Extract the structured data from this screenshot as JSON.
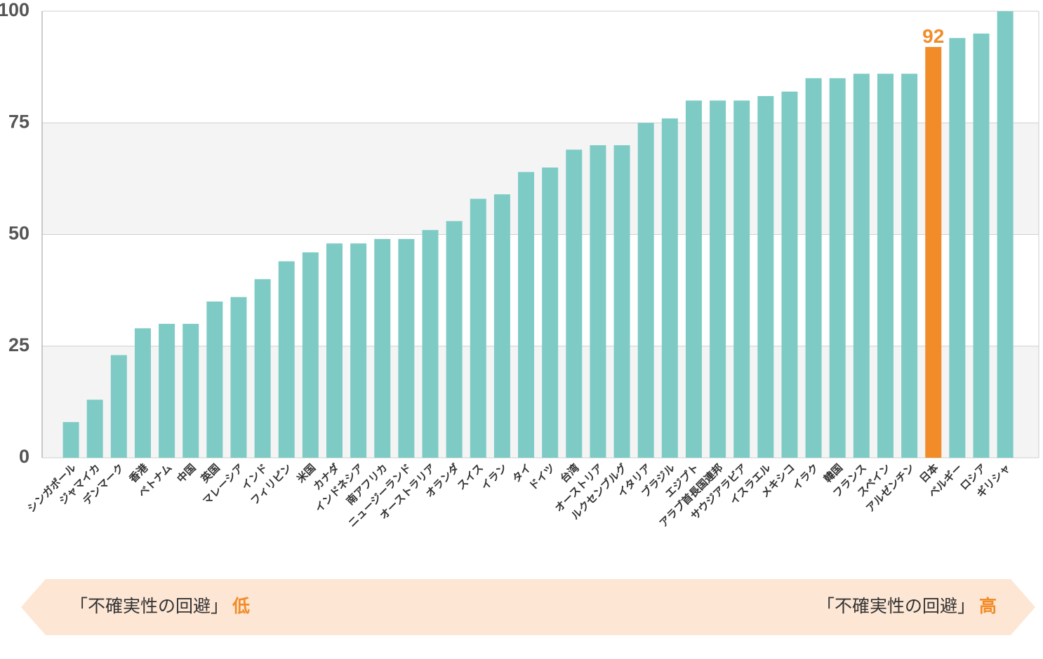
{
  "chart_data": {
    "type": "bar",
    "categories": [
      "シンガポール",
      "ジャマイカ",
      "デンマーク",
      "香港",
      "ベトナム",
      "中国",
      "英国",
      "マレーシア",
      "インド",
      "フィリピン",
      "米国",
      "カナダ",
      "インドネシア",
      "南アフリカ",
      "ニュージーランド",
      "オーストラリア",
      "オランダ",
      "スイス",
      "イラン",
      "タイ",
      "ドイツ",
      "台湾",
      "オーストリア",
      "ルクセンブルグ",
      "イタリア",
      "ブラジル",
      "エジプト",
      "アラブ首長国連邦",
      "サウジアラビア",
      "イスラエル",
      "メキシコ",
      "イラク",
      "韓国",
      "フランス",
      "スペイン",
      "アルゼンチン",
      "日本",
      "ベルギー",
      "ロシア",
      "ギリシャ"
    ],
    "values": [
      8,
      13,
      23,
      29,
      30,
      30,
      35,
      36,
      40,
      44,
      46,
      48,
      48,
      49,
      49,
      51,
      53,
      58,
      59,
      64,
      65,
      69,
      70,
      70,
      75,
      76,
      80,
      80,
      80,
      81,
      82,
      85,
      85,
      86,
      86,
      86,
      92,
      94,
      95,
      100
    ],
    "color": "#7ecbc6",
    "highlight": "日本",
    "highlight_color": "#f28c28",
    "ylim": [
      0,
      100
    ],
    "yticks": [
      0,
      25,
      50,
      75,
      100
    ],
    "grid": true
  },
  "banner": {
    "left_text": "「不確実性の回避」",
    "left_level": "低",
    "right_text": "「不確実性の回避」",
    "right_level": "高"
  }
}
